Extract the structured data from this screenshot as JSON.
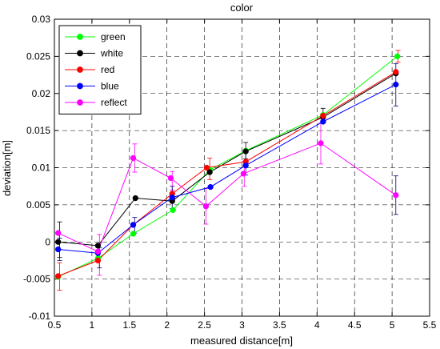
{
  "chart_data": {
    "type": "line",
    "title": "color",
    "xlabel": "measured distance[m]",
    "ylabel": "deviation[m]",
    "xlim": [
      0.5,
      5.5
    ],
    "ylim": [
      -0.01,
      0.03
    ],
    "xticks": [
      "0.5",
      "1",
      "1.5",
      "2",
      "2.5",
      "3",
      "3.5",
      "4",
      "4.5",
      "5",
      "5.5"
    ],
    "yticks": [
      "-0.01",
      "-0.005",
      "0",
      "0.005",
      "0.01",
      "0.015",
      "0.02",
      "0.025",
      "0.03"
    ],
    "grid": true,
    "legend_position": "top-left",
    "series": [
      {
        "name": "green",
        "color": "#00ff00",
        "points": [
          {
            "x": 0.55,
            "y": -0.0047
          },
          {
            "x": 1.08,
            "y": -0.0022
          },
          {
            "x": 1.55,
            "y": 0.0011
          },
          {
            "x": 2.08,
            "y": 0.0043
          },
          {
            "x": 2.57,
            "y": 0.0097
          },
          {
            "x": 3.05,
            "y": 0.0123
          },
          {
            "x": 4.08,
            "y": 0.0171
          },
          {
            "x": 5.07,
            "y": 0.025
          }
        ]
      },
      {
        "name": "white",
        "color": "#000000",
        "points": [
          {
            "x": 0.55,
            "y": 0.0
          },
          {
            "x": 1.08,
            "y": -0.0005
          },
          {
            "x": 1.58,
            "y": 0.0059
          },
          {
            "x": 2.07,
            "y": 0.0055
          },
          {
            "x": 2.57,
            "y": 0.0094
          },
          {
            "x": 3.05,
            "y": 0.0122
          },
          {
            "x": 4.08,
            "y": 0.0168
          },
          {
            "x": 5.05,
            "y": 0.0227
          }
        ]
      },
      {
        "name": "red",
        "color": "#ff0000",
        "points": [
          {
            "x": 0.55,
            "y": -0.0046
          },
          {
            "x": 1.08,
            "y": -0.0025
          },
          {
            "x": 1.55,
            "y": 0.0023
          },
          {
            "x": 2.07,
            "y": 0.0065
          },
          {
            "x": 2.53,
            "y": 0.01
          },
          {
            "x": 3.05,
            "y": 0.0108
          },
          {
            "x": 4.08,
            "y": 0.017
          },
          {
            "x": 5.05,
            "y": 0.0229
          }
        ]
      },
      {
        "name": "blue",
        "color": "#0000ff",
        "points": [
          {
            "x": 0.55,
            "y": -0.001
          },
          {
            "x": 1.08,
            "y": -0.0015
          },
          {
            "x": 1.55,
            "y": 0.0023
          },
          {
            "x": 2.07,
            "y": 0.006
          },
          {
            "x": 2.58,
            "y": 0.0074
          },
          {
            "x": 3.05,
            "y": 0.0103
          },
          {
            "x": 4.08,
            "y": 0.0162
          },
          {
            "x": 5.05,
            "y": 0.0212
          }
        ]
      },
      {
        "name": "reflect",
        "color": "#ff00ff",
        "points": [
          {
            "x": 0.55,
            "y": 0.0012
          },
          {
            "x": 1.08,
            "y": -0.0013
          },
          {
            "x": 1.55,
            "y": 0.0113
          },
          {
            "x": 2.05,
            "y": 0.0086
          },
          {
            "x": 2.52,
            "y": 0.0048
          },
          {
            "x": 3.02,
            "y": 0.0092
          },
          {
            "x": 4.05,
            "y": 0.0133
          },
          {
            "x": 5.05,
            "y": 0.0063
          }
        ]
      }
    ],
    "error_bars": [
      {
        "x": 0.57,
        "low": -0.0065,
        "high": -0.0028,
        "color": "#ff0000"
      },
      {
        "x": 0.57,
        "low": -0.0021,
        "high": 0.0027,
        "color": "#000000"
      },
      {
        "x": 0.57,
        "low": -0.0025,
        "high": 0.0005,
        "color": "#000080"
      },
      {
        "x": 1.1,
        "low": -0.0045,
        "high": 0.001,
        "color": "#ff00ff"
      },
      {
        "x": 1.1,
        "low": -0.0035,
        "high": -0.0008,
        "color": "#000080"
      },
      {
        "x": 1.57,
        "low": 0.0094,
        "high": 0.0132,
        "color": "#ff00ff"
      },
      {
        "x": 1.57,
        "low": 0.0012,
        "high": 0.0033,
        "color": "#000080"
      },
      {
        "x": 2.07,
        "low": 0.007,
        "high": 0.0095,
        "color": "#ff00ff"
      },
      {
        "x": 2.07,
        "low": 0.0045,
        "high": 0.0075,
        "color": "#000080"
      },
      {
        "x": 2.52,
        "low": 0.0024,
        "high": 0.0072,
        "color": "#ff00ff"
      },
      {
        "x": 2.57,
        "low": 0.0084,
        "high": 0.0113,
        "color": "#ff0000"
      },
      {
        "x": 3.03,
        "low": 0.0075,
        "high": 0.0108,
        "color": "#ff00ff"
      },
      {
        "x": 3.05,
        "low": 0.0112,
        "high": 0.0134,
        "color": "#000000"
      },
      {
        "x": 3.05,
        "low": 0.009,
        "high": 0.012,
        "color": "#000080"
      },
      {
        "x": 4.05,
        "low": 0.0105,
        "high": 0.016,
        "color": "#ff00ff"
      },
      {
        "x": 4.08,
        "low": 0.016,
        "high": 0.018,
        "color": "#000000"
      },
      {
        "x": 5.05,
        "low": 0.0037,
        "high": 0.0089,
        "color": "#000080"
      },
      {
        "x": 5.05,
        "low": 0.0183,
        "high": 0.024,
        "color": "#000080"
      },
      {
        "x": 5.08,
        "low": 0.0242,
        "high": 0.0258,
        "color": "#ff0000"
      }
    ]
  }
}
